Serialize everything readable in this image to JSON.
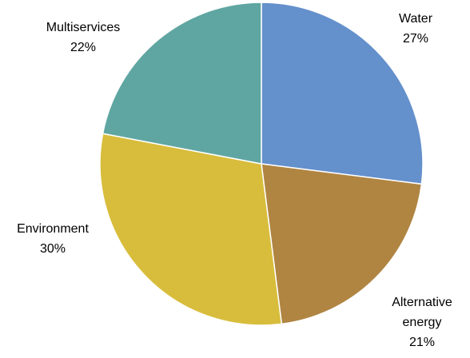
{
  "chart_data": {
    "type": "pie",
    "start_angle_deg": 0,
    "direction": "clockwise",
    "slices": [
      {
        "label_lines": [
          "Water"
        ],
        "pct_label": "27%",
        "value": 27,
        "color": "#6490CC"
      },
      {
        "label_lines": [
          "Alternative",
          "energy"
        ],
        "pct_label": "21%",
        "value": 21,
        "color": "#B08542"
      },
      {
        "label_lines": [
          "Environment"
        ],
        "pct_label": "30%",
        "value": 30,
        "color": "#D8BD3C"
      },
      {
        "label_lines": [
          "Multiservices"
        ],
        "pct_label": "22%",
        "value": 22,
        "color": "#5FA6A2"
      }
    ]
  }
}
